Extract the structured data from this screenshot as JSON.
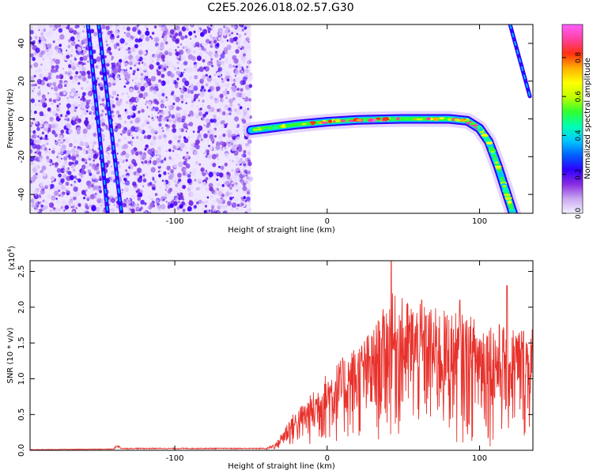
{
  "title": "C2E5.2026.018.02.57.G30",
  "chart_data": [
    {
      "type": "heatmap",
      "name": "spectrogram",
      "xlabel": "Height of straight line (km)",
      "ylabel": "Frequency (Hz)",
      "xlim": [
        -195,
        135
      ],
      "ylim": [
        -50,
        50
      ],
      "xticks": [
        -100,
        0,
        100
      ],
      "yticks": [
        -40,
        -20,
        0,
        20,
        40
      ],
      "colorbar": {
        "label": "Normalized spectral amplitude",
        "range": [
          0.0,
          0.97
        ],
        "ticks": [
          "0.0",
          "0.2",
          "0.4",
          "0.6",
          "0.8"
        ],
        "tick_values": [
          0.0,
          0.2,
          0.4,
          0.6,
          0.8
        ],
        "colors": [
          "#f4f0ff",
          "#c9a8f0",
          "#8a2be2",
          "#3000ff",
          "#0060ff",
          "#00c8ff",
          "#00ffb0",
          "#30ff30",
          "#c0ff00",
          "#ffff00",
          "#ffb000",
          "#ff3010",
          "#ff40a0",
          "#ff60ff"
        ]
      },
      "noise_region_x": [
        -195,
        -50
      ],
      "tracks": [
        {
          "name": "signal",
          "points": [
            [
              -50,
              -6
            ],
            [
              -40,
              -5
            ],
            [
              -20,
              -3
            ],
            [
              0,
              -1.5
            ],
            [
              20,
              -0.5
            ],
            [
              50,
              0
            ],
            [
              80,
              0
            ],
            [
              92,
              -1
            ],
            [
              100,
              -5
            ],
            [
              106,
              -12
            ],
            [
              112,
              -25
            ],
            [
              118,
              -40
            ],
            [
              122,
              -50
            ]
          ]
        },
        {
          "name": "left-streak-1",
          "points": [
            [
              -150,
              50
            ],
            [
              -135,
              -50
            ]
          ]
        },
        {
          "name": "left-streak-2",
          "points": [
            [
              -157,
              50
            ],
            [
              -144,
              -50
            ]
          ]
        },
        {
          "name": "right-streak",
          "points": [
            [
              120,
              50
            ],
            [
              133,
              12
            ]
          ]
        }
      ]
    },
    {
      "type": "line",
      "name": "snr",
      "xlabel": "Height of straight line (km)",
      "ylabel": "SNR (10 * v/v)",
      "multiplier": "(x10",
      "multiplier_exp": "4",
      "multiplier_close": ")",
      "xlim": [
        -195,
        135
      ],
      "ylim": [
        0.0,
        2.65
      ],
      "xticks": [
        -100,
        0,
        100
      ],
      "yticks": [
        0.0,
        0.5,
        1.0,
        1.5,
        2.0,
        2.5
      ],
      "ytick_labels": [
        "0.0",
        "0.5",
        "1.0",
        "1.5",
        "2.0",
        "2.5"
      ],
      "color": "#e8312b",
      "envelope": [
        [
          -195,
          0.01
        ],
        [
          -140,
          0.02
        ],
        [
          -138,
          0.08
        ],
        [
          -135,
          0.03
        ],
        [
          -40,
          0.03
        ],
        [
          -33,
          0.12
        ],
        [
          -25,
          0.45
        ],
        [
          -10,
          0.8
        ],
        [
          0,
          1.1
        ],
        [
          15,
          1.4
        ],
        [
          30,
          1.7
        ],
        [
          42,
          2.2
        ],
        [
          60,
          2.05
        ],
        [
          80,
          1.95
        ],
        [
          100,
          1.85
        ],
        [
          120,
          1.75
        ],
        [
          135,
          1.75
        ]
      ],
      "peaks": [
        [
          42,
          2.65
        ],
        [
          62,
          2.1
        ],
        [
          87,
          2.1
        ],
        [
          118,
          2.3
        ]
      ]
    }
  ]
}
